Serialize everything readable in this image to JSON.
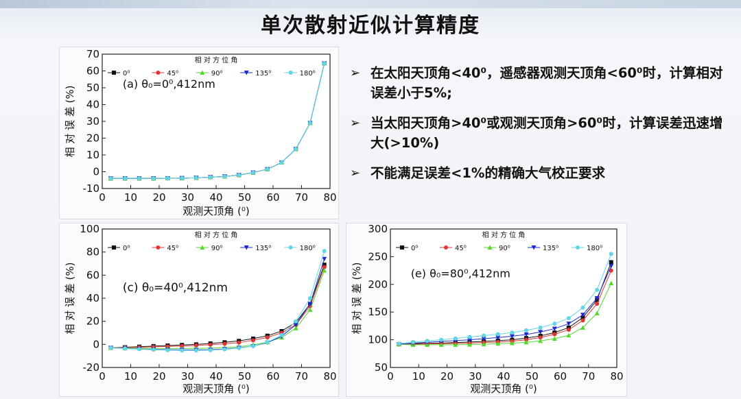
{
  "title": "单次散射近似计算精度",
  "bullets": [
    {
      "marker": "➢",
      "text": "在太阳天顶角<40⁰，遥感器观测天顶角<60⁰时，计算相对误差小于5%;"
    },
    {
      "marker": "➢",
      "text": "当太阳天顶角>40⁰或观测天顶角>60⁰时，计算误差迅速增大(>10%)"
    },
    {
      "marker": "➢",
      "text": "不能满足误差<1%的精确大气校正要求"
    }
  ],
  "chart_data": [
    {
      "type": "line",
      "annotation": "(a) θ₀=0⁰,412nm",
      "xlabel": "观测天顶角 (⁰)",
      "ylabel": "相 对 误 差 (%)",
      "legend_title": "相 对 方 位 角",
      "legend_position": "top",
      "xlim": [
        0,
        80
      ],
      "ylim": [
        -10,
        70
      ],
      "xticks": [
        0,
        10,
        20,
        30,
        40,
        50,
        60,
        70,
        80
      ],
      "yticks": [
        -10,
        0,
        10,
        20,
        30,
        40,
        50,
        60,
        70
      ],
      "x": [
        3,
        8,
        13,
        18,
        23,
        28,
        33,
        38,
        43,
        48,
        53,
        58,
        63,
        68,
        73,
        78
      ],
      "series": [
        {
          "name": "0⁰",
          "color": "#111111",
          "marker": "square",
          "values": [
            -4,
            -4,
            -4,
            -4,
            -3.9,
            -3.8,
            -3.6,
            -3.2,
            -2.8,
            -2,
            -0.5,
            1.5,
            5.5,
            13.5,
            29,
            64.5
          ]
        },
        {
          "name": "45⁰",
          "color": "#e03535",
          "marker": "circle",
          "values": [
            -4,
            -4,
            -4,
            -4,
            -3.9,
            -3.8,
            -3.6,
            -3.2,
            -2.8,
            -2,
            -0.5,
            1.5,
            5.5,
            13.5,
            29,
            64.5
          ]
        },
        {
          "name": "90⁰",
          "color": "#55d82c",
          "marker": "triangle",
          "values": [
            -4,
            -4,
            -4,
            -4,
            -3.9,
            -3.8,
            -3.6,
            -3.2,
            -2.8,
            -2,
            -0.5,
            1.5,
            5.5,
            13.5,
            29,
            64.5
          ]
        },
        {
          "name": "135⁰",
          "color": "#1c2bd0",
          "marker": "triangle-down",
          "values": [
            -4,
            -4,
            -4,
            -4,
            -3.9,
            -3.8,
            -3.6,
            -3.2,
            -2.8,
            -2,
            -0.5,
            1.5,
            5.5,
            13.5,
            29,
            64.5
          ]
        },
        {
          "name": "180⁰",
          "color": "#5fd6e8",
          "marker": "circle",
          "values": [
            -4,
            -4,
            -4,
            -4,
            -3.9,
            -3.8,
            -3.6,
            -3.2,
            -2.8,
            -2,
            -0.5,
            1.5,
            5.5,
            13.5,
            29,
            64.5
          ]
        }
      ]
    },
    {
      "type": "line",
      "annotation": "(c) θ₀=40⁰,412nm",
      "xlabel": "观测天顶角 (⁰)",
      "ylabel": "相 对 误 差 (%)",
      "legend_title": "相 对 方 位 角",
      "legend_position": "top",
      "xlim": [
        0,
        80
      ],
      "ylim": [
        -20,
        100
      ],
      "xticks": [
        0,
        10,
        20,
        30,
        40,
        50,
        60,
        70,
        80
      ],
      "yticks": [
        -20,
        0,
        20,
        40,
        60,
        80,
        100
      ],
      "x": [
        3,
        8,
        13,
        18,
        23,
        28,
        33,
        38,
        43,
        48,
        53,
        58,
        63,
        68,
        73,
        78
      ],
      "series": [
        {
          "name": "0⁰",
          "color": "#111111",
          "marker": "square",
          "values": [
            -3,
            -2.5,
            -2,
            -1.5,
            -1,
            -0.5,
            0,
            0.8,
            1.8,
            3,
            5,
            7.5,
            11.5,
            19,
            35,
            69
          ]
        },
        {
          "name": "45⁰",
          "color": "#e03535",
          "marker": "circle",
          "values": [
            -3,
            -2.8,
            -2.5,
            -2.2,
            -1.8,
            -1.4,
            -0.9,
            -0.3,
            0.5,
            1.5,
            3.5,
            6,
            10,
            17,
            33,
            67
          ]
        },
        {
          "name": "90⁰",
          "color": "#55d82c",
          "marker": "triangle",
          "values": [
            -3,
            -3.2,
            -3.4,
            -3.5,
            -3.6,
            -3.6,
            -3.5,
            -3.3,
            -2.8,
            -2,
            -0.5,
            2,
            6,
            14,
            30,
            64
          ]
        },
        {
          "name": "135⁰",
          "color": "#1c2bd0",
          "marker": "triangle-down",
          "values": [
            -3,
            -3.5,
            -4,
            -4.3,
            -4.6,
            -4.8,
            -4.8,
            -4.6,
            -4,
            -3,
            -1.5,
            1.5,
            7,
            17,
            35,
            74
          ]
        },
        {
          "name": "180⁰",
          "color": "#5fd6e8",
          "marker": "circle",
          "values": [
            -3,
            -3.6,
            -4.2,
            -4.6,
            -5,
            -5.2,
            -5.2,
            -5,
            -4.3,
            -3.2,
            -1.5,
            1.8,
            8,
            20,
            40,
            81
          ]
        }
      ]
    },
    {
      "type": "line",
      "annotation": "(e) θ₀=80⁰,412nm",
      "xlabel": "观测天顶角 (⁰)",
      "ylabel": "相 对 误 差 (%)",
      "legend_title": "相 对 方 位 角",
      "legend_position": "top",
      "xlim": [
        0,
        80
      ],
      "ylim": [
        50,
        300
      ],
      "xticks": [
        0,
        10,
        20,
        30,
        40,
        50,
        60,
        70,
        80
      ],
      "yticks": [
        50,
        100,
        150,
        200,
        250,
        300
      ],
      "x": [
        3,
        8,
        13,
        18,
        23,
        28,
        33,
        38,
        43,
        48,
        53,
        58,
        63,
        68,
        73,
        78
      ],
      "series": [
        {
          "name": "0⁰",
          "color": "#111111",
          "marker": "square",
          "values": [
            92,
            93,
            93.5,
            94,
            95,
            96,
            97,
            98.5,
            100,
            103,
            107,
            113,
            122,
            140,
            172,
            240
          ]
        },
        {
          "name": "45⁰",
          "color": "#e03535",
          "marker": "circle",
          "values": [
            92,
            92,
            92.5,
            93,
            93.5,
            94,
            95,
            96,
            97.5,
            100,
            104,
            110,
            118,
            135,
            165,
            225
          ]
        },
        {
          "name": "90⁰",
          "color": "#55d82c",
          "marker": "triangle",
          "values": [
            92,
            91,
            91,
            91,
            91,
            91.5,
            92,
            93,
            94,
            95.5,
            98,
            102,
            108,
            122,
            148,
            202
          ]
        },
        {
          "name": "135⁰",
          "color": "#1c2bd0",
          "marker": "triangle-down",
          "values": [
            92,
            94,
            95.5,
            97,
            98.5,
            100,
            102,
            104,
            106.5,
            109.5,
            114,
            120,
            129,
            145,
            175,
            233
          ]
        },
        {
          "name": "180⁰",
          "color": "#5fd6e8",
          "marker": "circle",
          "values": [
            93,
            96,
            98,
            100,
            102.5,
            105,
            107.5,
            110,
            113,
            117,
            122,
            129,
            139,
            158,
            190,
            255
          ]
        }
      ]
    }
  ]
}
